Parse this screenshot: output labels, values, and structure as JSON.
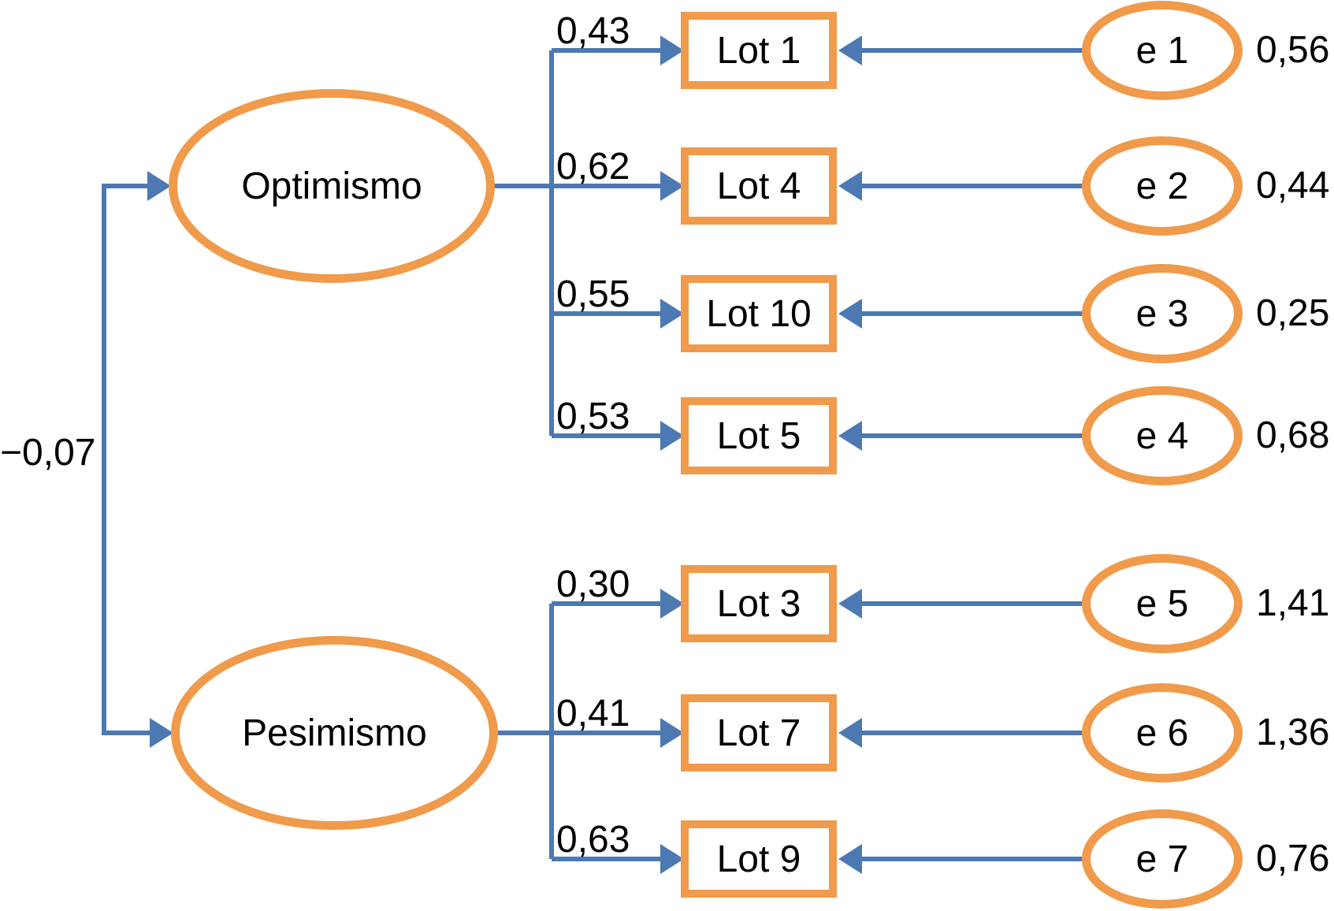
{
  "diagram": {
    "type": "sem-path-diagram",
    "correlation": {
      "value": "−0,07"
    },
    "factors": [
      {
        "label": "Optimismo",
        "indicators": [
          {
            "loading": "0,43",
            "label": "Lot 1",
            "error_label": "e 1",
            "error_variance": "0,56"
          },
          {
            "loading": "0,62",
            "label": "Lot 4",
            "error_label": "e 2",
            "error_variance": "0,44"
          },
          {
            "loading": "0,55",
            "label": "Lot 10",
            "error_label": "e 3",
            "error_variance": "0,25"
          },
          {
            "loading": "0,53",
            "label": "Lot 5",
            "error_label": "e 4",
            "error_variance": "0,68"
          }
        ]
      },
      {
        "label": "Pesimismo",
        "indicators": [
          {
            "loading": "0,30",
            "label": "Lot 3",
            "error_label": "e 5",
            "error_variance": "1,41"
          },
          {
            "loading": "0,41",
            "label": "Lot 7",
            "error_label": "e 6",
            "error_variance": "1,36"
          },
          {
            "loading": "0,63",
            "label": "Lot 9",
            "error_label": "e 7",
            "error_variance": "0,76"
          }
        ]
      }
    ],
    "colors": {
      "shape_outline": "#F09A4B",
      "connector": "#4D79B3",
      "text": "#000000",
      "background": "#FFFFFF"
    }
  }
}
